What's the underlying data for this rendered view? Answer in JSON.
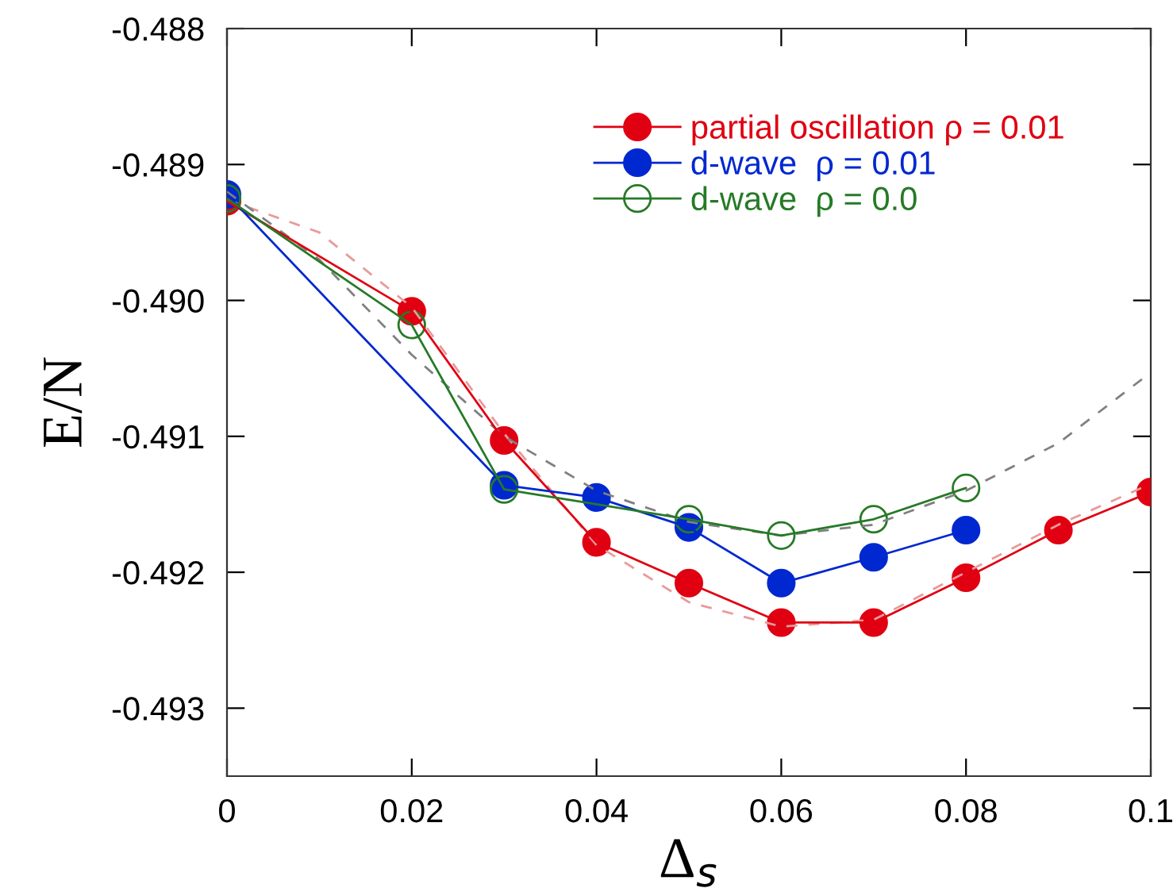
{
  "chart_data": {
    "type": "line",
    "xlabel": "Δ$_{s}$",
    "ylabel": "E/N",
    "xlim": [
      0,
      0.1
    ],
    "xticks": [
      0,
      0.02,
      0.04,
      0.06,
      0.08,
      0.1
    ],
    "ylim": [
      -0.4935,
      -0.488
    ],
    "yticks": [
      {
        "value": -0.488,
        "label": "-0.488"
      },
      {
        "value": -0.489,
        "label": "-0.489"
      },
      {
        "value": -0.49,
        "label": "-0.490"
      },
      {
        "value": -0.491,
        "label": "-0.491"
      },
      {
        "value": -0.492,
        "label": "-0.492"
      },
      {
        "value": -0.493,
        "label": "-0.493"
      }
    ],
    "grid": false,
    "legend": "top right",
    "series": [
      {
        "line_style": "dashed",
        "marker": "none",
        "color": "#e89a9a",
        "x": [
          0,
          0.01,
          0.02,
          0.03,
          0.04,
          0.05,
          0.06,
          0.07,
          0.08,
          0.09,
          0.1
        ],
        "values": [
          -0.48926,
          -0.4895,
          -0.49005,
          -0.49098,
          -0.4918,
          -0.49222,
          -0.4924,
          -0.49235,
          -0.492,
          -0.49165,
          -0.49135
        ]
      },
      {
        "line_style": "dashed",
        "marker": "none",
        "color": "#808080",
        "x": [
          0,
          0.01,
          0.02,
          0.03,
          0.04,
          0.05,
          0.06,
          0.07,
          0.08,
          0.09,
          0.1
        ],
        "values": [
          -0.4892,
          -0.4897,
          -0.4904,
          -0.491,
          -0.4914,
          -0.49163,
          -0.49173,
          -0.49165,
          -0.4914,
          -0.49105,
          -0.49053
        ]
      },
      {
        "name": "partial oscillation ρ = 0.01",
        "marker": "circle",
        "color": "#e00012",
        "x": [
          0,
          0.02,
          0.03,
          0.04,
          0.05,
          0.06,
          0.07,
          0.08,
          0.09,
          0.1
        ],
        "values": [
          -0.48927,
          -0.49008,
          -0.49103,
          -0.49178,
          -0.49208,
          -0.49237,
          -0.49237,
          -0.49204,
          -0.49169,
          -0.49141
        ]
      },
      {
        "name": "d-wave  ρ = 0.01",
        "marker": "circle",
        "color": "#0028d0",
        "x": [
          0,
          0.03,
          0.04,
          0.05,
          0.06,
          0.07,
          0.08
        ],
        "values": [
          -0.48922,
          -0.49136,
          -0.49145,
          -0.49167,
          -0.49208,
          -0.49189,
          -0.49169
        ]
      },
      {
        "name": "d-wave  ρ = 0.0",
        "marker": "open circle",
        "color": "#267a26",
        "x": [
          0,
          0.02,
          0.03,
          0.05,
          0.06,
          0.07,
          0.08
        ],
        "values": [
          -0.48925,
          -0.49018,
          -0.49139,
          -0.49161,
          -0.49173,
          -0.49161,
          -0.49138
        ]
      }
    ]
  }
}
